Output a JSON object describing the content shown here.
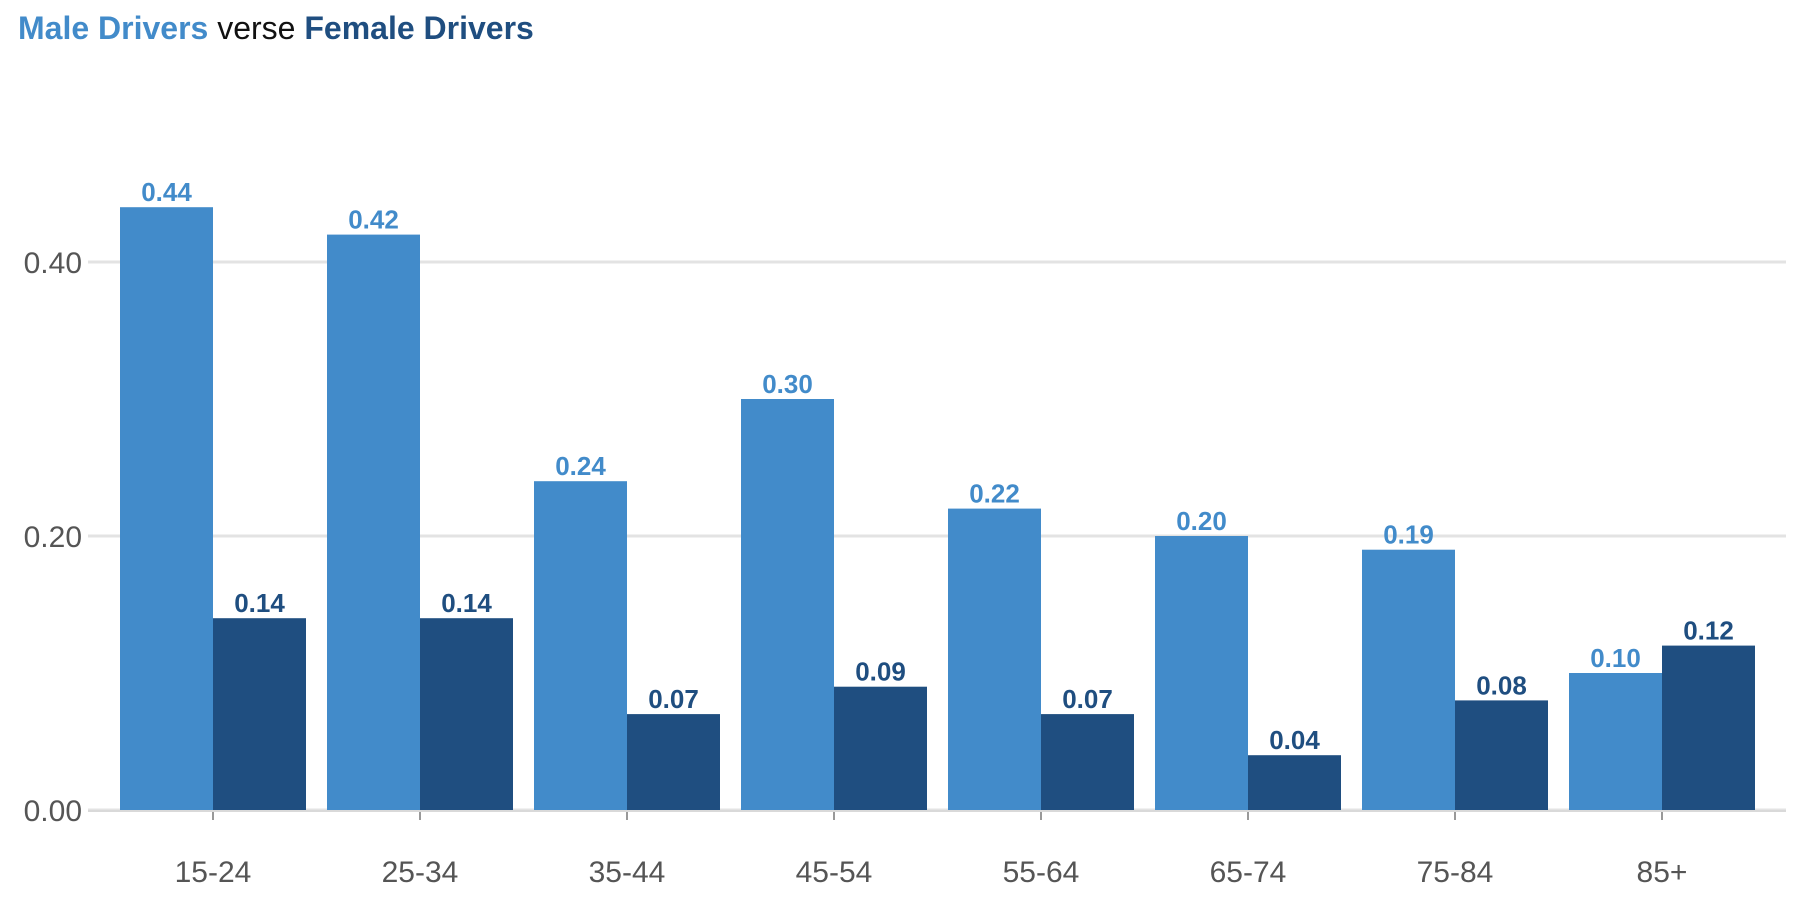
{
  "header": {
    "title_male": "Male Drivers",
    "title_mid": " verse ",
    "title_female": "Female Drivers"
  },
  "colors": {
    "male": "#428BCA",
    "female": "#1F4E80",
    "grid": "#e3e3e3",
    "tick": "#555555"
  },
  "chart_data": {
    "type": "bar",
    "categories": [
      "15-24",
      "25-34",
      "35-44",
      "45-54",
      "55-64",
      "65-74",
      "75-84",
      "85+"
    ],
    "series": [
      {
        "name": "Male Drivers",
        "values": [
          0.44,
          0.42,
          0.24,
          0.3,
          0.22,
          0.2,
          0.19,
          0.1
        ],
        "labels": [
          "0.44",
          "0.42",
          "0.24",
          "0.30",
          "0.22",
          "0.20",
          "0.19",
          "0.10"
        ]
      },
      {
        "name": "Female Drivers",
        "values": [
          0.14,
          0.14,
          0.07,
          0.09,
          0.07,
          0.04,
          0.08,
          0.12
        ],
        "labels": [
          "0.14",
          "0.14",
          "0.07",
          "0.09",
          "0.07",
          "0.04",
          "0.08",
          "0.12"
        ]
      }
    ],
    "yticks": [
      0.0,
      0.2,
      0.4
    ],
    "ytick_labels": [
      "0.00",
      "0.20",
      "0.40"
    ],
    "ylim": [
      0,
      0.5
    ],
    "grid": true,
    "legend": "title"
  }
}
